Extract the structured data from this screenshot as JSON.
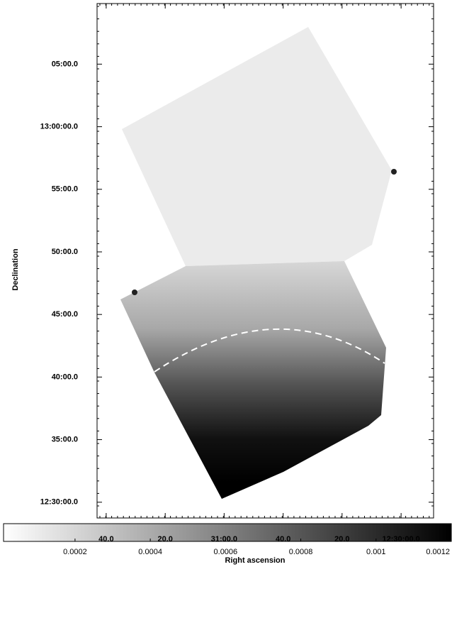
{
  "chart_data": {
    "type": "image",
    "xlabel": "Right ascension",
    "ylabel": "Declination",
    "xlim": [
      12.52864,
      12.49694
    ],
    "xticks": [
      {
        "value": 12.52778,
        "label": "40.0"
      },
      {
        "value": 12.52222,
        "label": "20.0"
      },
      {
        "value": 12.51667,
        "label": "31:00.0"
      },
      {
        "value": 12.51111,
        "label": "40.0"
      },
      {
        "value": 12.50556,
        "label": "20.0"
      },
      {
        "value": 12.5,
        "label": "12:30:00.0"
      }
    ],
    "ylim": [
      12.479,
      13.164
    ],
    "yticks": [
      {
        "value": 12.5,
        "label": "12:30:00.0"
      },
      {
        "value": 12.58333,
        "label": "35:00.0"
      },
      {
        "value": 12.66667,
        "label": "40:00.0"
      },
      {
        "value": 12.75,
        "label": "45:00.0"
      },
      {
        "value": 12.83333,
        "label": "50:00.0"
      },
      {
        "value": 12.91667,
        "label": "55:00.0"
      },
      {
        "value": 13.0,
        "label": "13:00:00.0"
      },
      {
        "value": 13.08333,
        "label": "05:00.0"
      }
    ],
    "colorbar": {
      "lim": [
        1e-05,
        0.0012
      ],
      "ticks": [
        0.0002,
        0.0004,
        0.0006,
        0.0008,
        0.001,
        0.0012
      ]
    }
  }
}
